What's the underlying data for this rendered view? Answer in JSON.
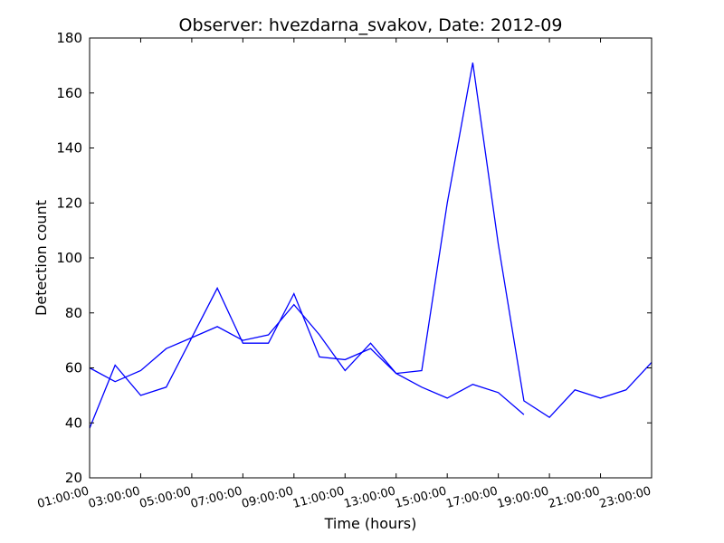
{
  "chart_data": {
    "type": "line",
    "title": "Observer: hvezdarna_svakov, Date: 2012-09",
    "xlabel": "Time (hours)",
    "ylabel": "Detection count",
    "ylim": [
      20,
      180
    ],
    "yticks": [
      20,
      40,
      60,
      80,
      100,
      120,
      140,
      160,
      180
    ],
    "xticks": [
      "01:00:00",
      "03:00:00",
      "05:00:00",
      "07:00:00",
      "09:00:00",
      "11:00:00",
      "13:00:00",
      "15:00:00",
      "17:00:00",
      "19:00:00",
      "21:00:00",
      "23:00:00"
    ],
    "xlim": [
      1,
      23
    ],
    "x_units": "hour of day",
    "grid": false,
    "legend": "none",
    "line_color": "#0000ff",
    "series": [
      {
        "x": [
          1,
          2,
          3,
          4,
          5,
          6,
          7,
          8,
          9,
          10,
          11,
          12,
          13,
          14,
          15,
          16,
          17,
          18,
          19,
          20,
          21,
          22,
          23
        ],
        "values": [
          38,
          61,
          50,
          53,
          71,
          89,
          69,
          69,
          87,
          64,
          63,
          67,
          58,
          59,
          120,
          171,
          105,
          48,
          42,
          52,
          49,
          52,
          62
        ]
      },
      {
        "x": [
          1,
          2,
          3,
          4,
          5,
          6,
          7,
          8,
          9,
          10,
          11,
          12,
          13,
          14,
          15,
          16,
          17,
          18
        ],
        "values": [
          60,
          55,
          59,
          67,
          71,
          75,
          70,
          72,
          83,
          72,
          59,
          69,
          58,
          53,
          49,
          54,
          51,
          43
        ]
      }
    ]
  }
}
